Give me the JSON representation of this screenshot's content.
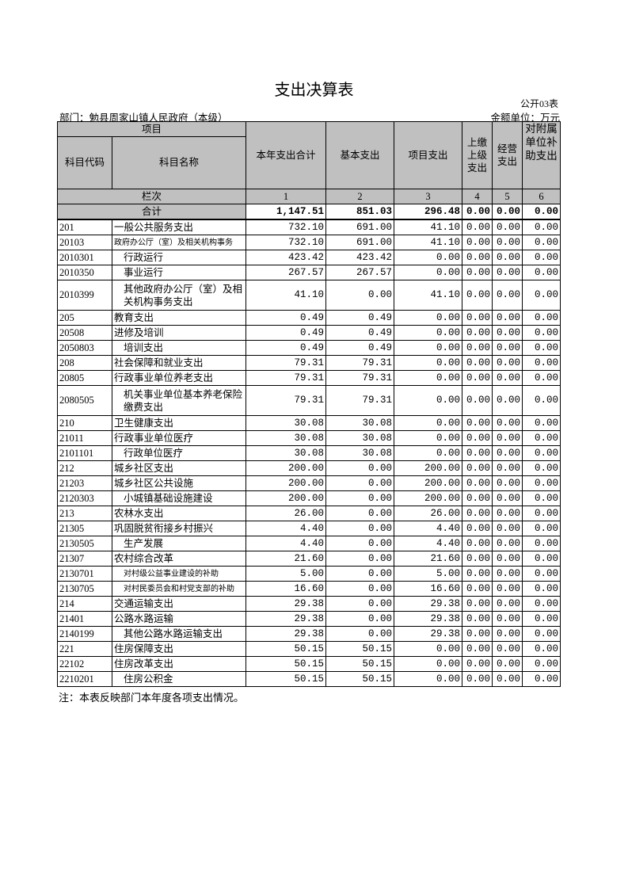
{
  "title": "支出决算表",
  "form_no": "公开03表",
  "department": "部门：勉县周家山镇人民政府（本级）",
  "unit": "金额单位：万元",
  "header": {
    "item": "项目",
    "code": "科目代码",
    "name": "科目名称",
    "cols": [
      "本年支出合计",
      "基本支出",
      "项目支出",
      "上缴上级支出",
      "经营支出",
      "对附属单位补助支出"
    ],
    "row_label": "栏次",
    "col_numbers": [
      "1",
      "2",
      "3",
      "4",
      "5",
      "6"
    ]
  },
  "total": {
    "label": "合计",
    "values": [
      "1,147.51",
      "851.03",
      "296.48",
      "0.00",
      "0.00",
      "0.00"
    ]
  },
  "rows": [
    {
      "code": "201",
      "name": "一般公共服务支出",
      "level": 1,
      "values": [
        "732.10",
        "691.00",
        "41.10",
        "0.00",
        "0.00",
        "0.00"
      ]
    },
    {
      "code": "20103",
      "name": "政府办公厅（室）及相关机构事务",
      "level": 2,
      "small": true,
      "values": [
        "732.10",
        "691.00",
        "41.10",
        "0.00",
        "0.00",
        "0.00"
      ]
    },
    {
      "code": "2010301",
      "name": "行政运行",
      "level": 3,
      "values": [
        "423.42",
        "423.42",
        "0.00",
        "0.00",
        "0.00",
        "0.00"
      ]
    },
    {
      "code": "2010350",
      "name": "事业运行",
      "level": 3,
      "values": [
        "267.57",
        "267.57",
        "0.00",
        "0.00",
        "0.00",
        "0.00"
      ]
    },
    {
      "code": "2010399",
      "name": "其他政府办公厅（室）及相关机构事务支出",
      "level": 3,
      "tall": true,
      "values": [
        "41.10",
        "0.00",
        "41.10",
        "0.00",
        "0.00",
        "0.00"
      ]
    },
    {
      "code": "205",
      "name": "教育支出",
      "level": 1,
      "values": [
        "0.49",
        "0.49",
        "0.00",
        "0.00",
        "0.00",
        "0.00"
      ]
    },
    {
      "code": "20508",
      "name": "进修及培训",
      "level": 2,
      "values": [
        "0.49",
        "0.49",
        "0.00",
        "0.00",
        "0.00",
        "0.00"
      ]
    },
    {
      "code": "2050803",
      "name": "培训支出",
      "level": 3,
      "values": [
        "0.49",
        "0.49",
        "0.00",
        "0.00",
        "0.00",
        "0.00"
      ]
    },
    {
      "code": "208",
      "name": "社会保障和就业支出",
      "level": 1,
      "values": [
        "79.31",
        "79.31",
        "0.00",
        "0.00",
        "0.00",
        "0.00"
      ]
    },
    {
      "code": "20805",
      "name": "行政事业单位养老支出",
      "level": 2,
      "values": [
        "79.31",
        "79.31",
        "0.00",
        "0.00",
        "0.00",
        "0.00"
      ]
    },
    {
      "code": "2080505",
      "name": "机关事业单位基本养老保险缴费支出",
      "level": 3,
      "tall": true,
      "values": [
        "79.31",
        "79.31",
        "0.00",
        "0.00",
        "0.00",
        "0.00"
      ]
    },
    {
      "code": "210",
      "name": "卫生健康支出",
      "level": 1,
      "values": [
        "30.08",
        "30.08",
        "0.00",
        "0.00",
        "0.00",
        "0.00"
      ]
    },
    {
      "code": "21011",
      "name": "行政事业单位医疗",
      "level": 2,
      "values": [
        "30.08",
        "30.08",
        "0.00",
        "0.00",
        "0.00",
        "0.00"
      ]
    },
    {
      "code": "2101101",
      "name": "行政单位医疗",
      "level": 3,
      "values": [
        "30.08",
        "30.08",
        "0.00",
        "0.00",
        "0.00",
        "0.00"
      ]
    },
    {
      "code": "212",
      "name": "城乡社区支出",
      "level": 1,
      "values": [
        "200.00",
        "0.00",
        "200.00",
        "0.00",
        "0.00",
        "0.00"
      ]
    },
    {
      "code": "21203",
      "name": "城乡社区公共设施",
      "level": 2,
      "values": [
        "200.00",
        "0.00",
        "200.00",
        "0.00",
        "0.00",
        "0.00"
      ]
    },
    {
      "code": "2120303",
      "name": "小城镇基础设施建设",
      "level": 3,
      "values": [
        "200.00",
        "0.00",
        "200.00",
        "0.00",
        "0.00",
        "0.00"
      ]
    },
    {
      "code": "213",
      "name": "农林水支出",
      "level": 1,
      "values": [
        "26.00",
        "0.00",
        "26.00",
        "0.00",
        "0.00",
        "0.00"
      ]
    },
    {
      "code": "21305",
      "name": "巩固脱贫衔接乡村振兴",
      "level": 2,
      "values": [
        "4.40",
        "0.00",
        "4.40",
        "0.00",
        "0.00",
        "0.00"
      ]
    },
    {
      "code": "2130505",
      "name": "生产发展",
      "level": 3,
      "values": [
        "4.40",
        "0.00",
        "4.40",
        "0.00",
        "0.00",
        "0.00"
      ]
    },
    {
      "code": "21307",
      "name": "农村综合改革",
      "level": 2,
      "values": [
        "21.60",
        "0.00",
        "21.60",
        "0.00",
        "0.00",
        "0.00"
      ]
    },
    {
      "code": "2130701",
      "name": "对村级公益事业建设的补助",
      "level": 3,
      "small": true,
      "values": [
        "5.00",
        "0.00",
        "5.00",
        "0.00",
        "0.00",
        "0.00"
      ]
    },
    {
      "code": "2130705",
      "name": "对村民委员会和村党支部的补助",
      "level": 3,
      "small": true,
      "values": [
        "16.60",
        "0.00",
        "16.60",
        "0.00",
        "0.00",
        "0.00"
      ]
    },
    {
      "code": "214",
      "name": "交通运输支出",
      "level": 1,
      "values": [
        "29.38",
        "0.00",
        "29.38",
        "0.00",
        "0.00",
        "0.00"
      ]
    },
    {
      "code": "21401",
      "name": "公路水路运输",
      "level": 2,
      "values": [
        "29.38",
        "0.00",
        "29.38",
        "0.00",
        "0.00",
        "0.00"
      ]
    },
    {
      "code": "2140199",
      "name": "其他公路水路运输支出",
      "level": 3,
      "values": [
        "29.38",
        "0.00",
        "29.38",
        "0.00",
        "0.00",
        "0.00"
      ]
    },
    {
      "code": "221",
      "name": "住房保障支出",
      "level": 1,
      "values": [
        "50.15",
        "50.15",
        "0.00",
        "0.00",
        "0.00",
        "0.00"
      ]
    },
    {
      "code": "22102",
      "name": "住房改革支出",
      "level": 2,
      "values": [
        "50.15",
        "50.15",
        "0.00",
        "0.00",
        "0.00",
        "0.00"
      ]
    },
    {
      "code": "2210201",
      "name": "住房公积金",
      "level": 3,
      "values": [
        "50.15",
        "50.15",
        "0.00",
        "0.00",
        "0.00",
        "0.00"
      ]
    }
  ],
  "note": "注：本表反映部门本年度各项支出情况。"
}
